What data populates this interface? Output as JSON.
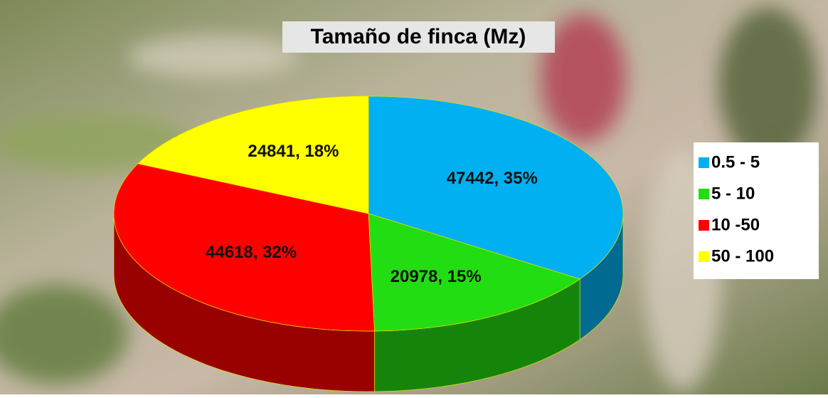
{
  "chart_data": {
    "type": "pie",
    "title": "Tamaño de finca (Mz)",
    "categories": [
      "0.5 - 5",
      "5 - 10",
      "10 -50",
      "50 - 100"
    ],
    "values": [
      47442,
      20978,
      44618,
      24841
    ],
    "value_labels": [
      "47442, 35%",
      "20978, 15%",
      "44618, 32%",
      "24841, 18%"
    ],
    "colors": [
      "#00b0f0",
      "#22dd11",
      "#ff0000",
      "#ffff00"
    ],
    "legend": "right"
  }
}
